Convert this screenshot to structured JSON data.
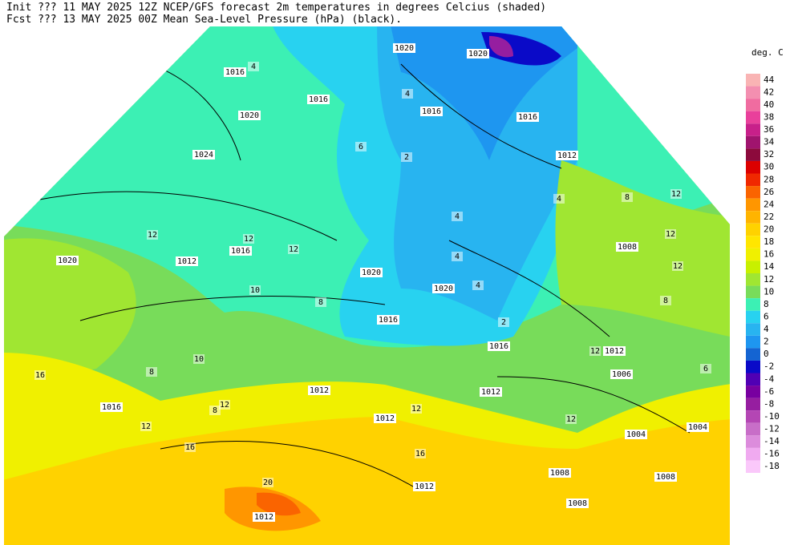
{
  "header": {
    "line1": "Init  ??? 11 MAY 2025 12Z  NCEP/GFS forecast 2m temperatures in degrees Celcius (shaded)",
    "line2": "Fcst ??? 13 MAY 2025 00Z  Mean Sea-Level Pressure (hPa) (black)."
  },
  "legend": {
    "title": "deg. C",
    "levels": [
      44,
      42,
      40,
      38,
      36,
      34,
      32,
      30,
      28,
      26,
      24,
      22,
      20,
      18,
      16,
      14,
      12,
      10,
      8,
      6,
      4,
      2,
      0,
      -2,
      -4,
      -6,
      -8,
      -10,
      -12,
      -14,
      -16,
      -18
    ],
    "colors": [
      "#f9b4b4",
      "#f38fb0",
      "#f06ca0",
      "#e9409b",
      "#c8208a",
      "#a0146e",
      "#8c0a3c",
      "#dc0000",
      "#f02800",
      "#fa6400",
      "#ff9600",
      "#ffb400",
      "#ffd200",
      "#ffe600",
      "#f0f000",
      "#c8f000",
      "#a0e632",
      "#78dc5a",
      "#3cf0b4",
      "#28d2f0",
      "#28b4f0",
      "#1e96f0",
      "#1464d2",
      "#0a0ac8",
      "#5000b4",
      "#7800a0",
      "#961ea0",
      "#b446b4",
      "#c86ec8",
      "#dc8cdc",
      "#f0aaf0",
      "#fac8fa"
    ]
  },
  "map": {
    "isobar_labels": [
      1016,
      1016,
      1020,
      1024,
      1020,
      1012,
      1016,
      1020,
      1020,
      1016,
      1016,
      1012,
      1008,
      1012,
      1016,
      1016,
      1020,
      1020,
      1012,
      1012,
      1012,
      1008,
      1012,
      1008,
      1008,
      1012,
      1004,
      1004,
      1006,
      1016
    ],
    "temperature_labels": [
      12,
      12,
      12,
      10,
      8,
      10,
      8,
      16,
      12,
      8,
      12,
      16,
      20,
      16,
      12,
      12,
      12,
      12,
      12,
      8,
      12,
      8,
      4,
      4,
      4,
      4,
      2,
      4,
      6,
      2,
      4,
      6
    ]
  }
}
